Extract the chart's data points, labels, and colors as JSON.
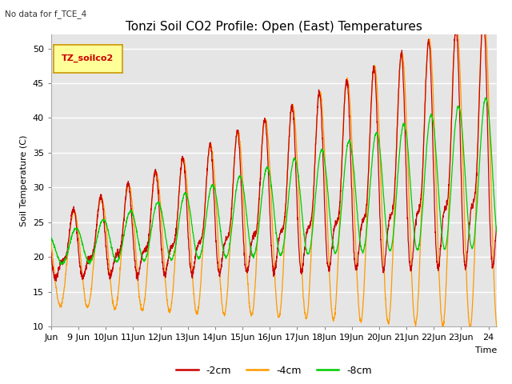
{
  "title": "Tonzi Soil CO2 Profile: Open (East) Temperatures",
  "subtitle": "No data for f_TCE_4",
  "ylabel": "Soil Temperature (C)",
  "xlabel": "Time",
  "ylim": [
    10,
    52
  ],
  "xlim_days": [
    8.0,
    24.3
  ],
  "xtick_days": [
    8,
    9,
    10,
    11,
    12,
    13,
    14,
    15,
    16,
    17,
    18,
    19,
    20,
    21,
    22,
    23,
    24
  ],
  "xtick_labels": [
    "Jun",
    "9 Jun",
    "10Jun",
    "11Jun",
    "12Jun",
    "13Jun",
    "14Jun",
    "15Jun",
    "16Jun",
    "17Jun",
    "18Jun",
    "19Jun",
    "20Jun",
    "21Jun",
    "22Jun",
    "23Jun",
    "24"
  ],
  "yticks": [
    10,
    15,
    20,
    25,
    30,
    35,
    40,
    45,
    50
  ],
  "color_2cm": "#cc0000",
  "color_4cm": "#ff9900",
  "color_8cm": "#00cc00",
  "legend_label_2cm": "-2cm",
  "legend_label_4cm": "-4cm",
  "legend_label_8cm": "-8cm",
  "inset_label": "TZ_soilco2",
  "inset_bg": "#ffff99",
  "inset_border": "#cc9900",
  "bg_color": "#e5e5e5",
  "grid_color": "#ffffff",
  "title_fontsize": 11,
  "axis_fontsize": 8,
  "legend_fontsize": 9
}
